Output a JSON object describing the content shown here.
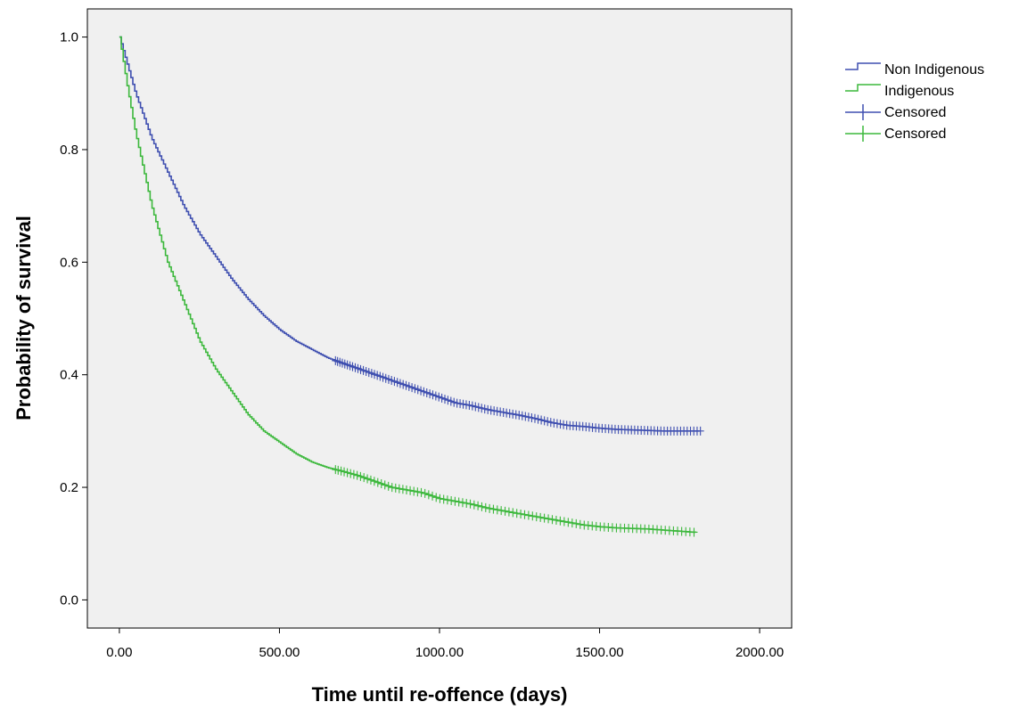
{
  "chart_data": {
    "type": "line",
    "title": "",
    "xlabel": "Time until re-offence (days)",
    "ylabel": "Probability of survival",
    "xlim": [
      -100,
      2100
    ],
    "ylim": [
      -0.05,
      1.05
    ],
    "x_ticks": [
      0,
      500,
      1000,
      1500,
      2000
    ],
    "x_tick_labels": [
      "0.00",
      "500.00",
      "1000.00",
      "1500.00",
      "2000.00"
    ],
    "y_ticks": [
      0.0,
      0.2,
      0.4,
      0.6,
      0.8,
      1.0
    ],
    "y_tick_labels": [
      "0.0",
      "0.2",
      "0.4",
      "0.6",
      "0.8",
      "1.0"
    ],
    "grid": false,
    "plot_background": "#f0f0f0",
    "legend_position": "right",
    "legend": [
      {
        "label": "Non Indigenous",
        "color": "#3f4fb0",
        "marker": "step-line"
      },
      {
        "label": "Indigenous",
        "color": "#3cb83c",
        "marker": "step-line"
      },
      {
        "label": "Censored",
        "color": "#3f4fb0",
        "marker": "plus"
      },
      {
        "label": "Censored",
        "color": "#3cb83c",
        "marker": "plus"
      }
    ],
    "series": [
      {
        "name": "Non Indigenous",
        "color": "#3f4fb0",
        "x": [
          0,
          25,
          50,
          100,
          150,
          200,
          250,
          300,
          350,
          400,
          450,
          500,
          550,
          600,
          650,
          700,
          750,
          800,
          850,
          900,
          950,
          1000,
          1050,
          1100,
          1150,
          1200,
          1250,
          1300,
          1350,
          1400,
          1450,
          1500,
          1550,
          1600,
          1650,
          1700,
          1750,
          1800,
          1815
        ],
        "y": [
          1.0,
          0.95,
          0.9,
          0.82,
          0.76,
          0.7,
          0.65,
          0.61,
          0.57,
          0.535,
          0.505,
          0.48,
          0.46,
          0.445,
          0.43,
          0.42,
          0.41,
          0.4,
          0.39,
          0.38,
          0.37,
          0.36,
          0.35,
          0.345,
          0.338,
          0.333,
          0.328,
          0.322,
          0.315,
          0.31,
          0.308,
          0.305,
          0.303,
          0.302,
          0.301,
          0.3,
          0.3,
          0.3,
          0.3
        ],
        "censor_range": [
          675,
          1815
        ],
        "censor_count": 120
      },
      {
        "name": "Indigenous",
        "color": "#3cb83c",
        "x": [
          0,
          25,
          50,
          100,
          150,
          200,
          250,
          300,
          350,
          400,
          450,
          500,
          550,
          600,
          650,
          700,
          750,
          800,
          850,
          900,
          950,
          1000,
          1050,
          1100,
          1150,
          1200,
          1250,
          1300,
          1350,
          1400,
          1450,
          1500,
          1550,
          1600,
          1650,
          1700,
          1750,
          1800
        ],
        "y": [
          1.0,
          0.91,
          0.83,
          0.7,
          0.6,
          0.53,
          0.46,
          0.41,
          0.37,
          0.33,
          0.3,
          0.28,
          0.26,
          0.245,
          0.235,
          0.228,
          0.22,
          0.21,
          0.2,
          0.195,
          0.19,
          0.18,
          0.175,
          0.17,
          0.163,
          0.158,
          0.153,
          0.148,
          0.143,
          0.138,
          0.133,
          0.13,
          0.128,
          0.127,
          0.126,
          0.124,
          0.122,
          0.12
        ],
        "censor_range": [
          675,
          1795
        ],
        "censor_count": 95
      }
    ]
  }
}
